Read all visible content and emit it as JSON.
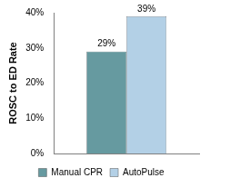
{
  "chart_data": {
    "type": "bar",
    "y_label": "ROSC to ED Rate",
    "categories": [
      null
    ],
    "series": [
      {
        "name": "Manual CPR",
        "color": "#669aa0",
        "values": [
          29
        ],
        "value_labels": [
          "29%"
        ]
      },
      {
        "name": "AutoPulse",
        "color": "#b3d0e6",
        "values": [
          39
        ],
        "value_labels": [
          "39%"
        ]
      }
    ],
    "ylim": [
      0,
      40
    ],
    "yticks": [
      {
        "value": 0,
        "label": "0%"
      },
      {
        "value": 10,
        "label": "10%"
      },
      {
        "value": 20,
        "label": "20%"
      },
      {
        "value": 30,
        "label": "30%"
      },
      {
        "value": 40,
        "label": "40%"
      }
    ],
    "grid": false,
    "legend": "bottom",
    "data_labels": true,
    "tick_labels": "y"
  }
}
